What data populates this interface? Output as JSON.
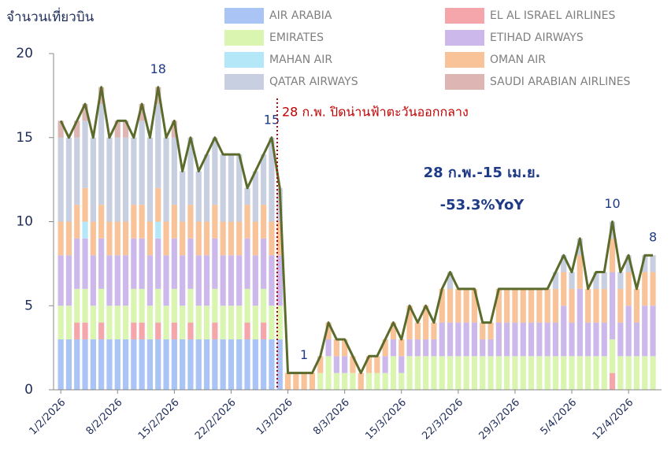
{
  "chart_data": {
    "type": "stacked_bar_line",
    "y_label": "จำนวนเที่ยวบิน",
    "categories": [
      "1/2/2026",
      null,
      null,
      null,
      null,
      null,
      null,
      "8/2/2026",
      null,
      null,
      null,
      null,
      null,
      null,
      "15/2/2026",
      null,
      null,
      null,
      null,
      null,
      null,
      "22/2/2026",
      null,
      null,
      null,
      null,
      null,
      null,
      "1/3/2026",
      null,
      null,
      null,
      null,
      null,
      null,
      "8/3/2026",
      null,
      null,
      null,
      null,
      null,
      null,
      "15/3/2026",
      null,
      null,
      null,
      null,
      null,
      null,
      "22/3/2026",
      null,
      null,
      null,
      null,
      null,
      null,
      "29/3/2026",
      null,
      null,
      null,
      null,
      null,
      null,
      "5/4/2026",
      null,
      null,
      null,
      null,
      null,
      null,
      "12/4/2026",
      null,
      null,
      null
    ],
    "series": [
      {
        "name": "AIR ARABIA",
        "color": "#a9c4f5",
        "values": [
          3,
          3,
          3,
          3,
          3,
          3,
          3,
          3,
          3,
          3,
          3,
          3,
          3,
          3,
          3,
          3,
          3,
          3,
          3,
          3,
          3,
          3,
          3,
          3,
          3,
          3,
          3,
          3,
          0,
          0,
          0,
          0,
          0,
          0,
          0,
          0,
          0,
          0,
          0,
          0,
          0,
          0,
          0,
          0,
          0,
          0,
          0,
          0,
          0,
          0,
          0,
          0,
          0,
          0,
          0,
          0,
          0,
          0,
          0,
          0,
          0,
          0,
          0,
          0,
          0,
          0,
          0,
          0,
          0,
          0,
          0,
          0,
          0,
          0
        ]
      },
      {
        "name": "EL AL ISRAEL AIRLINES",
        "color": "#f4a6aa",
        "values": [
          0,
          0,
          1,
          1,
          0,
          1,
          0,
          0,
          0,
          1,
          1,
          0,
          1,
          0,
          1,
          0,
          1,
          0,
          0,
          1,
          0,
          0,
          0,
          1,
          0,
          1,
          0,
          0,
          0,
          0,
          0,
          0,
          0,
          0,
          0,
          0,
          0,
          0,
          0,
          0,
          0,
          0,
          0,
          0,
          0,
          0,
          0,
          0,
          0,
          0,
          0,
          0,
          0,
          0,
          0,
          0,
          0,
          0,
          0,
          0,
          0,
          0,
          0,
          0,
          0,
          0,
          0,
          0,
          1,
          0,
          0,
          0,
          0,
          0
        ]
      },
      {
        "name": "EMIRATES",
        "color": "#d9f5b0",
        "values": [
          2,
          2,
          2,
          2,
          2,
          2,
          2,
          2,
          2,
          2,
          2,
          2,
          2,
          2,
          2,
          2,
          2,
          2,
          2,
          2,
          2,
          2,
          2,
          2,
          2,
          2,
          2,
          2,
          0,
          0,
          0,
          0,
          1,
          2,
          1,
          1,
          1,
          0,
          1,
          1,
          1,
          2,
          1,
          2,
          2,
          2,
          2,
          2,
          2,
          2,
          2,
          2,
          2,
          2,
          2,
          2,
          2,
          2,
          2,
          2,
          2,
          2,
          2,
          2,
          2,
          2,
          2,
          2,
          2,
          2,
          2,
          2,
          2,
          2
        ]
      },
      {
        "name": "ETIHAD AIRWAYS",
        "color": "#cdb8ec",
        "values": [
          3,
          3,
          3,
          3,
          3,
          3,
          3,
          3,
          3,
          3,
          3,
          3,
          3,
          3,
          3,
          3,
          3,
          3,
          3,
          3,
          3,
          3,
          3,
          3,
          3,
          3,
          3,
          3,
          0,
          0,
          0,
          0,
          0,
          1,
          1,
          1,
          0,
          0,
          0,
          0,
          1,
          1,
          1,
          1,
          1,
          1,
          1,
          2,
          2,
          2,
          2,
          2,
          1,
          1,
          2,
          2,
          2,
          2,
          2,
          2,
          2,
          2,
          3,
          2,
          4,
          2,
          2,
          2,
          4,
          2,
          3,
          2,
          3,
          3
        ]
      },
      {
        "name": "MAHAN AIR",
        "color": "#b4e8f8",
        "values": [
          0,
          0,
          0,
          1,
          0,
          0,
          0,
          0,
          0,
          0,
          0,
          0,
          1,
          0,
          0,
          0,
          0,
          0,
          0,
          0,
          0,
          0,
          0,
          0,
          0,
          0,
          0,
          0,
          0,
          0,
          0,
          0,
          0,
          0,
          0,
          0,
          0,
          0,
          0,
          0,
          0,
          0,
          0,
          0,
          0,
          0,
          0,
          0,
          0,
          0,
          0,
          0,
          0,
          0,
          0,
          0,
          0,
          0,
          0,
          0,
          0,
          0,
          0,
          0,
          0,
          0,
          0,
          0,
          0,
          0,
          0,
          0,
          0,
          0
        ]
      },
      {
        "name": "OMAN AIR",
        "color": "#f9c39a",
        "values": [
          2,
          2,
          2,
          2,
          2,
          2,
          2,
          2,
          2,
          2,
          2,
          2,
          2,
          2,
          2,
          2,
          2,
          2,
          2,
          2,
          2,
          2,
          2,
          2,
          2,
          2,
          2,
          2,
          1,
          1,
          1,
          1,
          1,
          1,
          1,
          1,
          1,
          1,
          1,
          1,
          1,
          1,
          1,
          2,
          1,
          2,
          1,
          2,
          2,
          2,
          2,
          2,
          1,
          1,
          2,
          2,
          2,
          2,
          2,
          2,
          2,
          2,
          2,
          2,
          2,
          2,
          2,
          2,
          2,
          2,
          2,
          2,
          2,
          2
        ]
      },
      {
        "name": "QATAR AIRWAYS",
        "color": "#c8cfe0",
        "values": [
          5,
          5,
          4,
          4,
          5,
          6,
          5,
          5,
          5,
          4,
          5,
          5,
          5,
          5,
          4,
          3,
          4,
          3,
          4,
          4,
          4,
          4,
          4,
          1,
          3,
          3,
          5,
          2,
          0,
          0,
          0,
          0,
          0,
          0,
          0,
          0,
          0,
          0,
          0,
          0,
          0,
          0,
          0,
          0,
          0,
          0,
          0,
          0,
          1,
          0,
          0,
          0,
          0,
          0,
          0,
          0,
          0,
          0,
          0,
          0,
          0,
          1,
          1,
          1,
          1,
          0,
          1,
          1,
          1,
          1,
          1,
          0,
          1,
          1
        ]
      },
      {
        "name": "SAUDI ARABIAN AIRLINES",
        "color": "#ddb6b3",
        "values": [
          1,
          0,
          1,
          1,
          0,
          1,
          0,
          1,
          1,
          0,
          1,
          0,
          1,
          0,
          1,
          0,
          0,
          0,
          0,
          0,
          0,
          0,
          0,
          0,
          0,
          0,
          0,
          0,
          0,
          0,
          0,
          0,
          0,
          0,
          0,
          0,
          0,
          0,
          0,
          0,
          0,
          0,
          0,
          0,
          0,
          0,
          0,
          0,
          0,
          0,
          0,
          0,
          0,
          0,
          0,
          0,
          0,
          0,
          0,
          0,
          0,
          0,
          0,
          0,
          0,
          0,
          0,
          0,
          0,
          0,
          0,
          0,
          0,
          0
        ]
      }
    ],
    "line": {
      "color": "#5b6b2b",
      "values": [
        16,
        15,
        16,
        17,
        15,
        18,
        15,
        16,
        16,
        15,
        17,
        15,
        18,
        15,
        16,
        13,
        15,
        13,
        14,
        15,
        14,
        14,
        14,
        12,
        13,
        14,
        15,
        12,
        1,
        1,
        1,
        1,
        2,
        4,
        3,
        3,
        2,
        1,
        2,
        2,
        3,
        4,
        3,
        5,
        4,
        5,
        4,
        6,
        7,
        6,
        6,
        6,
        4,
        4,
        6,
        6,
        6,
        6,
        6,
        6,
        6,
        7,
        8,
        7,
        9,
        6,
        7,
        7,
        10,
        7,
        8,
        6,
        8,
        8
      ],
      "value_labels": [
        null,
        null,
        null,
        null,
        null,
        null,
        null,
        null,
        null,
        null,
        null,
        null,
        "18",
        null,
        null,
        null,
        null,
        null,
        null,
        null,
        null,
        null,
        null,
        null,
        null,
        null,
        "15",
        null,
        null,
        null,
        "1",
        null,
        null,
        null,
        null,
        null,
        null,
        null,
        null,
        null,
        null,
        null,
        null,
        null,
        null,
        null,
        null,
        null,
        null,
        null,
        null,
        null,
        null,
        null,
        null,
        null,
        null,
        null,
        null,
        null,
        null,
        null,
        null,
        null,
        null,
        null,
        null,
        null,
        "10",
        null,
        null,
        null,
        null,
        "8"
      ]
    },
    "annotations": [
      "28 ก.พ. ปิดน่านฟ้าตะวันออกกลาง",
      "28 ก.พ.-15 เม.ย.",
      "-53.3%YoY"
    ],
    "ylim": [
      0,
      20
    ],
    "yticks": [
      0,
      5,
      10,
      15,
      20
    ],
    "grid": false
  }
}
